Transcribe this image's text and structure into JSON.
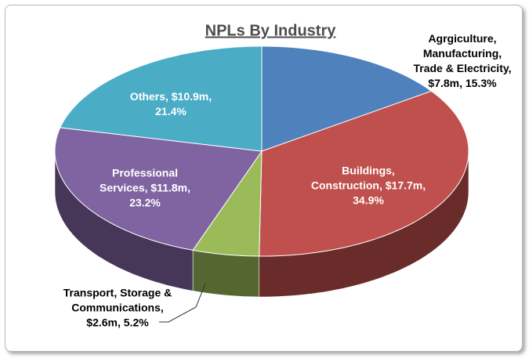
{
  "chart_data": {
    "type": "pie",
    "title": "NPLs By Industry",
    "categories": [
      "Agrgiculture, Manufacturing, Trade & Electricity",
      "Buildings, Construction",
      "Transport, Storage & Communications",
      "Professional Services",
      "Others"
    ],
    "values": [
      15.3,
      34.9,
      5.2,
      23.2,
      21.4
    ],
    "value_labels": [
      "15.3%",
      "34.9%",
      "5.2%",
      "23.2%",
      "21.4%"
    ],
    "amounts": [
      7.8,
      17.7,
      2.6,
      11.8,
      10.9
    ],
    "amount_labels": [
      "$7.8m",
      "$17.7m",
      "$2.6m",
      "$11.8m",
      "$10.9m"
    ],
    "colors": [
      "#4f81bd",
      "#c0504d",
      "#9bbb59",
      "#8064a2",
      "#4bacc6"
    ]
  }
}
